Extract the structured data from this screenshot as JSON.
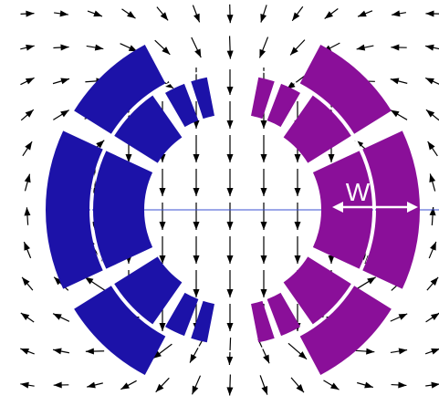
{
  "label": "W"
}
